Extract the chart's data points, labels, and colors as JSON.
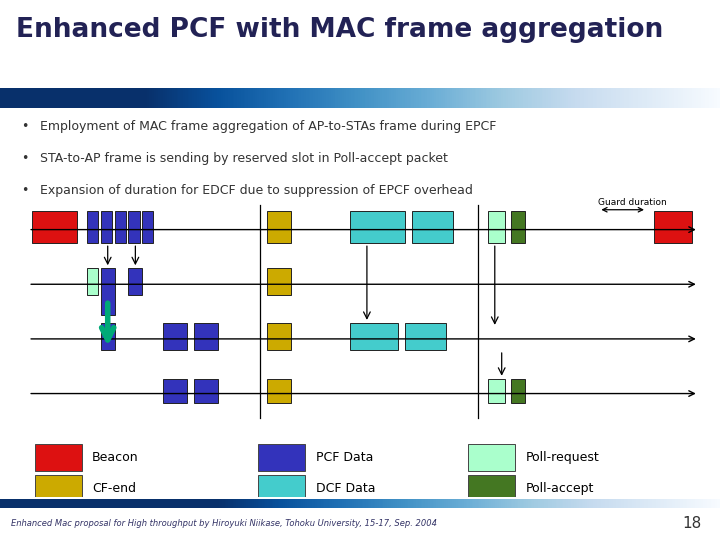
{
  "title": "Enhanced PCF with MAC frame aggregation",
  "bullets": [
    "Employment of MAC frame aggregation of AP-to-STAs frame during EPCF",
    "STA-to-AP frame is sending by reserved slot in Poll-accept packet",
    "Expansion of duration for EDCF due to suppression of EPCF overhead"
  ],
  "footer": "Enhanced Mac proposal for High throughput by Hiroyuki Niikase, Tohoku University, 15-17, Sep. 2004",
  "page_num": "18",
  "colors": {
    "beacon": "#dd1111",
    "pcf_data": "#3333bb",
    "dcf_data": "#44cccc",
    "poll_request": "#aaffcc",
    "poll_accept": "#447722",
    "cf_end": "#ccaa00",
    "arrow_green": "#00aa77",
    "bg": "#ffffff"
  },
  "legend": [
    {
      "label": "Beacon",
      "color": "#dd1111",
      "col": 0,
      "row": 0
    },
    {
      "label": "CF-end",
      "color": "#ccaa00",
      "col": 0,
      "row": 1
    },
    {
      "label": "PCF Data",
      "color": "#3333bb",
      "col": 1,
      "row": 0
    },
    {
      "label": "DCF Data",
      "color": "#44cccc",
      "col": 1,
      "row": 1
    },
    {
      "label": "Poll-request",
      "color": "#aaffcc",
      "col": 2,
      "row": 0
    },
    {
      "label": "Poll-accept",
      "color": "#447722",
      "col": 2,
      "row": 1
    }
  ]
}
